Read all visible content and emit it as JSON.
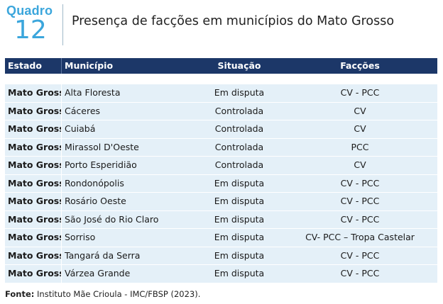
{
  "header": {
    "label_word": "Quadro",
    "label_number": "12",
    "title": "Presença de facções em municípios do Mato Grosso"
  },
  "table": {
    "columns": [
      "Estado",
      "Município",
      "Situação",
      "Facções"
    ],
    "rows": [
      {
        "estado": "Mato Grosso",
        "municipio": "Alta Floresta",
        "situacao": "Em disputa",
        "faccoes": "CV - PCC"
      },
      {
        "estado": "Mato Grosso",
        "municipio": "Cáceres",
        "situacao": "Controlada",
        "faccoes": "CV"
      },
      {
        "estado": "Mato Grosso",
        "municipio": "Cuiabá",
        "situacao": "Controlada",
        "faccoes": "CV"
      },
      {
        "estado": "Mato Grosso",
        "municipio": "Mirassol D'Oeste",
        "situacao": "Controlada",
        "faccoes": "PCC"
      },
      {
        "estado": "Mato Grosso",
        "municipio": "Porto Esperidião",
        "situacao": "Controlada",
        "faccoes": "CV"
      },
      {
        "estado": "Mato Grosso",
        "municipio": "Rondonópolis",
        "situacao": "Em disputa",
        "faccoes": "CV - PCC"
      },
      {
        "estado": "Mato Grosso",
        "municipio": "Rosário Oeste",
        "situacao": "Em disputa",
        "faccoes": "CV - PCC"
      },
      {
        "estado": "Mato Grosso",
        "municipio": "São José do Rio Claro",
        "situacao": "Em disputa",
        "faccoes": "CV - PCC"
      },
      {
        "estado": "Mato Grosso",
        "municipio": "Sorriso",
        "situacao": "Em disputa",
        "faccoes": "CV- PCC – Tropa Castelar"
      },
      {
        "estado": "Mato Grosso",
        "municipio": "Tangará da Serra",
        "situacao": "Em disputa",
        "faccoes": "CV - PCC"
      },
      {
        "estado": "Mato Grosso",
        "municipio": "Várzea Grande",
        "situacao": "Em disputa",
        "faccoes": "CV - PCC"
      }
    ]
  },
  "source": {
    "label": "Fonte:",
    "text": " Instituto Mãe Crioula - IMC/FBSP (2023)."
  }
}
